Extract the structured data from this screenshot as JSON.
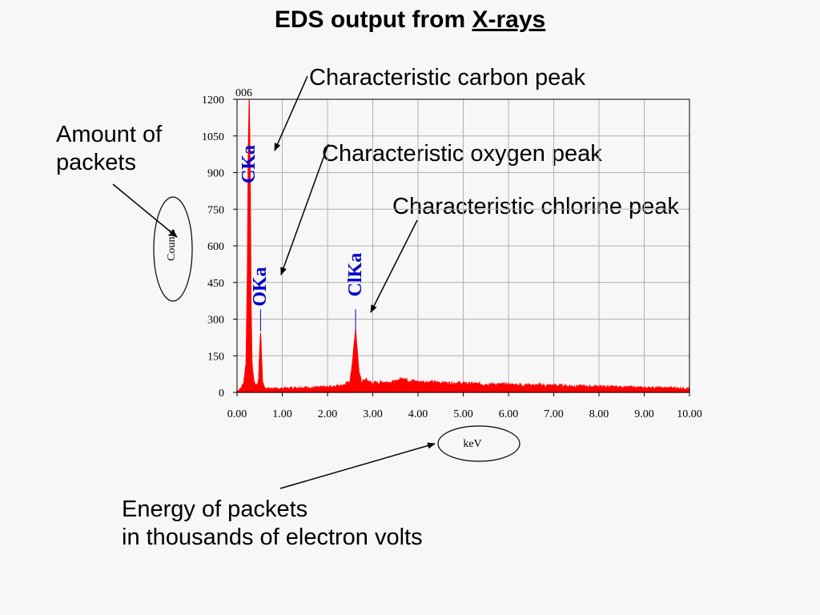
{
  "slide": {
    "title_prefix": "EDS output from ",
    "title_link": "X-rays"
  },
  "annotations": {
    "carbon": "Characteristic carbon peak",
    "oxygen": "Characteristic oxygen peak",
    "chlorine": "Characteristic chlorine peak",
    "amount_line1": "Amount of",
    "amount_line2": "packets",
    "energy_line1": "Energy of packets",
    "energy_line2": "in thousands of electron volts"
  },
  "colors": {
    "spectrum": "#ff0000",
    "peak_label": "#0000cc",
    "grid": "#b0b0b0",
    "background": "#f7f7f7"
  },
  "chart_data": {
    "type": "area",
    "title": "",
    "xlabel": "keV",
    "ylabel": "Counts",
    "corner_label": "006",
    "xlim": [
      0,
      10
    ],
    "ylim": [
      0,
      1200
    ],
    "xticks": [
      "0.00",
      "1.00",
      "2.00",
      "3.00",
      "4.00",
      "5.00",
      "6.00",
      "7.00",
      "8.00",
      "9.00",
      "10.00"
    ],
    "yticks": [
      "0",
      "150",
      "300",
      "450",
      "600",
      "750",
      "900",
      "1050",
      "1200"
    ],
    "grid": true,
    "peaks": [
      {
        "label": "CKa",
        "x": 0.27,
        "y": 1200
      },
      {
        "label": "OKa",
        "x": 0.52,
        "y": 250
      },
      {
        "label": "ClKa",
        "x": 2.62,
        "y": 250
      }
    ],
    "series": [
      {
        "x": [
          0.0,
          0.05,
          0.1,
          0.15,
          0.2,
          0.23,
          0.25,
          0.27,
          0.29,
          0.31,
          0.33,
          0.36,
          0.4,
          0.45,
          0.48,
          0.5,
          0.52,
          0.54,
          0.56,
          0.6,
          0.7,
          0.8,
          1.0,
          1.3,
          1.6,
          2.0,
          2.3,
          2.5,
          2.55,
          2.6,
          2.62,
          2.65,
          2.7,
          2.75,
          2.85,
          3.0,
          3.2,
          3.5,
          3.65,
          3.7,
          3.75,
          4.0,
          4.5,
          5.0,
          5.5,
          6.0,
          6.5,
          7.0,
          7.5,
          8.0,
          8.5,
          9.0,
          9.5,
          10.0
        ],
        "values": [
          5,
          10,
          20,
          40,
          120,
          500,
          1000,
          1200,
          900,
          350,
          120,
          60,
          30,
          25,
          60,
          160,
          250,
          150,
          50,
          20,
          15,
          15,
          15,
          18,
          18,
          20,
          25,
          45,
          120,
          220,
          250,
          180,
          80,
          40,
          50,
          35,
          40,
          42,
          55,
          60,
          48,
          42,
          38,
          35,
          32,
          30,
          28,
          26,
          24,
          22,
          20,
          18,
          17,
          15
        ]
      }
    ]
  }
}
